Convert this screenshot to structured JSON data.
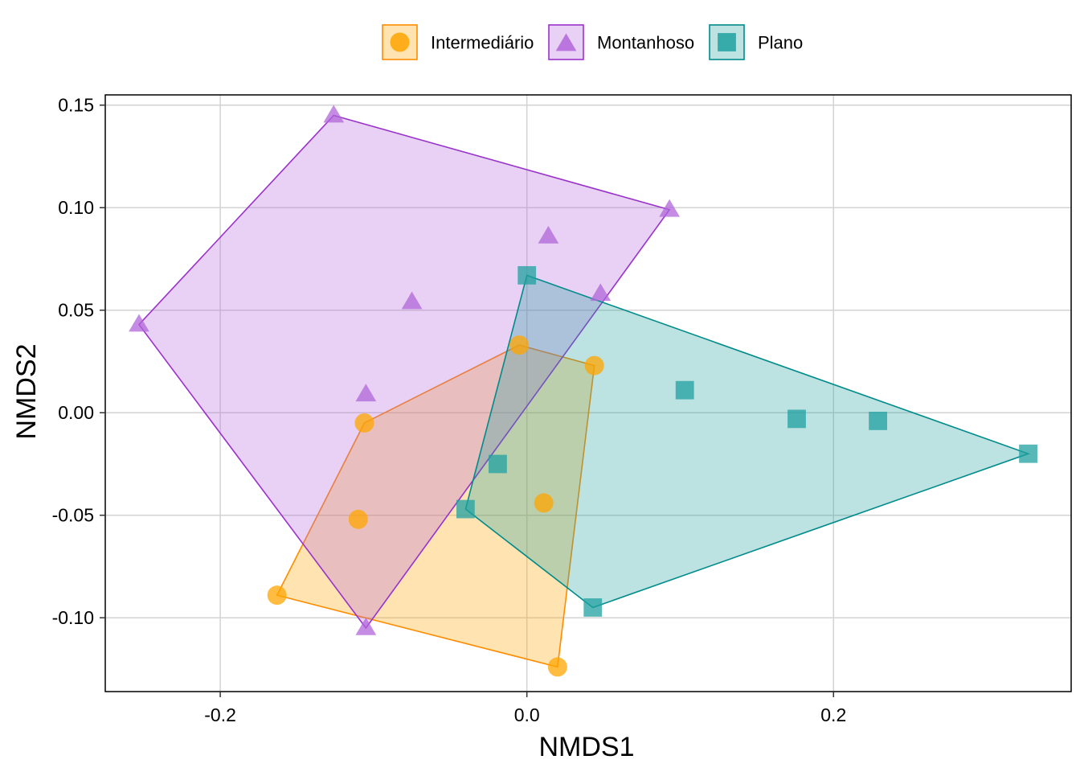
{
  "chart_data": {
    "type": "scatter",
    "xlabel": "NMDS1",
    "ylabel": "NMDS2",
    "xlim": [
      -0.275,
      0.355
    ],
    "ylim": [
      -0.136,
      0.155
    ],
    "xticks": [
      -0.2,
      0.0,
      0.2
    ],
    "xtick_labels": [
      "-0.2",
      "0.0",
      "0.2"
    ],
    "yticks": [
      -0.1,
      -0.05,
      0.0,
      0.05,
      0.1,
      0.15
    ],
    "ytick_labels": [
      "-0.10",
      "-0.05",
      "0.00",
      "0.05",
      "0.10",
      "0.15"
    ],
    "grid": true,
    "legend_position": "top",
    "hulls": true,
    "series": [
      {
        "name": "Intermediário",
        "marker": "circle",
        "color": "#FF8C00",
        "fill": "#FFA500",
        "points": [
          {
            "x": -0.163,
            "y": -0.089
          },
          {
            "x": -0.11,
            "y": -0.052
          },
          {
            "x": -0.106,
            "y": -0.005
          },
          {
            "x": -0.005,
            "y": 0.033
          },
          {
            "x": 0.044,
            "y": 0.023
          },
          {
            "x": 0.011,
            "y": -0.044
          },
          {
            "x": 0.02,
            "y": -0.124
          }
        ],
        "hull": [
          {
            "x": -0.163,
            "y": -0.089
          },
          {
            "x": -0.106,
            "y": -0.005
          },
          {
            "x": -0.005,
            "y": 0.033
          },
          {
            "x": 0.044,
            "y": 0.023
          },
          {
            "x": 0.02,
            "y": -0.124
          }
        ]
      },
      {
        "name": "Montanhoso",
        "marker": "triangle",
        "color": "#9932CC",
        "fill": "#B266D9",
        "points": [
          {
            "x": -0.126,
            "y": 0.145
          },
          {
            "x": 0.093,
            "y": 0.099
          },
          {
            "x": 0.014,
            "y": 0.086
          },
          {
            "x": -0.253,
            "y": 0.043
          },
          {
            "x": -0.075,
            "y": 0.054
          },
          {
            "x": 0.048,
            "y": 0.058
          },
          {
            "x": -0.105,
            "y": 0.009
          },
          {
            "x": -0.105,
            "y": -0.105
          }
        ],
        "hull": [
          {
            "x": -0.253,
            "y": 0.043
          },
          {
            "x": -0.126,
            "y": 0.145
          },
          {
            "x": 0.093,
            "y": 0.099
          },
          {
            "x": -0.105,
            "y": -0.105
          }
        ]
      },
      {
        "name": "Plano",
        "marker": "square",
        "color": "#008B8B",
        "fill": "#20A0A0",
        "points": [
          {
            "x": 0.0,
            "y": 0.067
          },
          {
            "x": 0.103,
            "y": 0.011
          },
          {
            "x": 0.176,
            "y": -0.003
          },
          {
            "x": 0.229,
            "y": -0.004
          },
          {
            "x": 0.327,
            "y": -0.02
          },
          {
            "x": -0.019,
            "y": -0.025
          },
          {
            "x": -0.04,
            "y": -0.047
          },
          {
            "x": 0.043,
            "y": -0.095
          }
        ],
        "hull": [
          {
            "x": 0.0,
            "y": 0.067
          },
          {
            "x": 0.327,
            "y": -0.02
          },
          {
            "x": 0.043,
            "y": -0.095
          },
          {
            "x": -0.04,
            "y": -0.047
          }
        ]
      }
    ]
  }
}
